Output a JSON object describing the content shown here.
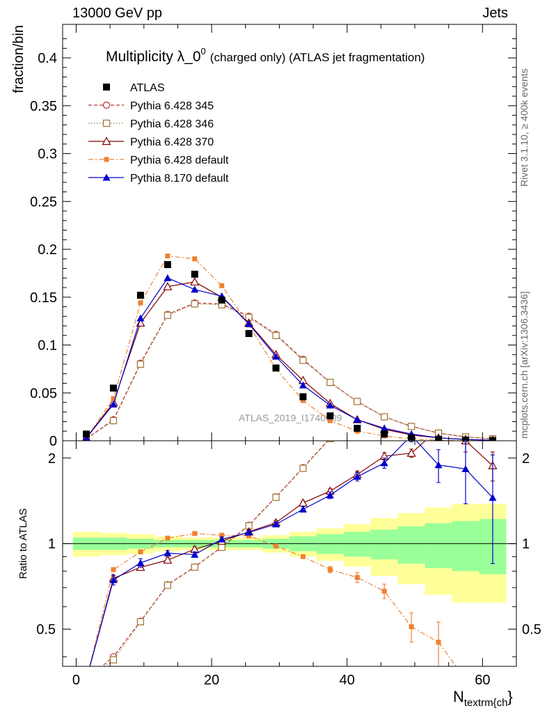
{
  "header": {
    "left": "13000 GeV pp",
    "right": "Jets"
  },
  "side_labels": {
    "rivet": "Rivet 3.1.10, ≥ 400k events",
    "mcplots": "mcplots.cern.ch [arXiv:1306.3436]"
  },
  "chart_data": {
    "type": "line",
    "title": "Multiplicity λ_0",
    "title_superscript": "0",
    "title_suffix": "(charged only) (ATLAS jet fragmentation)",
    "analysis_tag": "ATLAS_2019_I1740909",
    "xlabel": "N",
    "xlabel_sub": "textrm{ch",
    "xlabel_end": "}",
    "ylabel": "fraction/bin",
    "ratio_ylabel": "Ratio to ATLAS",
    "xlim": [
      -2,
      65
    ],
    "ylim": [
      0,
      0.435
    ],
    "ratio_ylim": [
      0.37,
      2.3
    ],
    "x_ticks": [
      0,
      20,
      40,
      60
    ],
    "x_tick_labels": [
      "0",
      "20",
      "40",
      "60"
    ],
    "y_ticks": [
      0,
      0.05,
      0.1,
      0.15,
      0.2,
      0.25,
      0.3,
      0.35,
      0.4
    ],
    "y_tick_labels": [
      "0",
      "0.05",
      "0.1",
      "0.15",
      "0.2",
      "0.25",
      "0.3",
      "0.35",
      "0.4"
    ],
    "ratio_ticks": [
      0.5,
      1,
      2
    ],
    "ratio_tick_labels": [
      "0.5",
      "1",
      "2"
    ],
    "x": [
      1.5,
      5.5,
      9.5,
      13.5,
      17.5,
      21.5,
      25.5,
      29.5,
      33.5,
      37.5,
      41.5,
      45.5,
      49.5,
      53.5,
      57.5,
      61.5
    ],
    "data": {
      "name": "ATLAS",
      "values": [
        0.007,
        0.055,
        0.152,
        0.184,
        0.174,
        0.147,
        0.112,
        0.076,
        0.046,
        0.026,
        0.013,
        0.007,
        0.003,
        0.0015,
        0.0007,
        0.0003
      ],
      "band_inner": [
        0.05,
        0.05,
        0.04,
        0.03,
        0.03,
        0.03,
        0.03,
        0.04,
        0.06,
        0.08,
        0.1,
        0.12,
        0.15,
        0.18,
        0.2,
        0.22
      ],
      "band_outer": [
        0.1,
        0.09,
        0.08,
        0.06,
        0.05,
        0.05,
        0.05,
        0.07,
        0.1,
        0.13,
        0.17,
        0.23,
        0.28,
        0.34,
        0.38,
        0.38
      ]
    },
    "series": [
      {
        "name": "Pythia 6.428 345",
        "color": "#b03030",
        "marker": "open-circle",
        "dash": "dashed",
        "values": [
          0.002,
          0.022,
          0.081,
          0.132,
          0.144,
          0.143,
          0.13,
          0.111,
          0.085,
          0.061,
          0.041,
          0.025,
          0.015,
          0.008,
          0.004,
          0.002
        ],
        "ratio": [
          0.3,
          0.4,
          0.533,
          0.717,
          0.828,
          0.973,
          1.16,
          1.46,
          1.85,
          2.35,
          3.15,
          3.57,
          5.0,
          5.33,
          5.71,
          6.67
        ]
      },
      {
        "name": "Pythia 6.428 346",
        "color": "#a07030",
        "marker": "open-square",
        "dash": "dotted",
        "values": [
          0.002,
          0.021,
          0.08,
          0.131,
          0.143,
          0.142,
          0.129,
          0.11,
          0.084,
          0.061,
          0.041,
          0.025,
          0.015,
          0.008,
          0.004,
          0.002
        ],
        "ratio": [
          0.3,
          0.39,
          0.531,
          0.714,
          0.826,
          0.97,
          1.155,
          1.455,
          1.84,
          2.34,
          3.14,
          3.56,
          5.0,
          5.33,
          5.71,
          6.67
        ]
      },
      {
        "name": "Pythia 6.428 370",
        "color": "#800000",
        "marker": "open-triangle",
        "dash": "solid",
        "values": [
          0.003,
          0.04,
          0.123,
          0.161,
          0.166,
          0.15,
          0.123,
          0.09,
          0.063,
          0.039,
          0.022,
          0.012,
          0.006,
          0.003,
          0.0015,
          0.0006
        ],
        "ratio": [
          0.3,
          0.755,
          0.825,
          0.875,
          0.955,
          1.02,
          1.1,
          1.185,
          1.39,
          1.53,
          1.75,
          2.03,
          2.08,
          2.6,
          2.3,
          1.88
        ],
        "ratio_err": [
          0,
          0.02,
          0.02,
          0.02,
          0.02,
          0.02,
          0.02,
          0.02,
          0.02,
          0.03,
          0.05,
          0.06,
          0.07,
          0.15,
          0.2,
          0.22
        ]
      },
      {
        "name": "Pythia 6.428 default",
        "color": "#f08030",
        "marker": "filled-square",
        "dash": "dashdot",
        "values": [
          0.003,
          0.044,
          0.144,
          0.193,
          0.19,
          0.162,
          0.121,
          0.075,
          0.042,
          0.021,
          0.01,
          0.005,
          0.0017,
          0.0006,
          0.0002,
          0.0001
        ],
        "ratio": [
          0.3,
          0.81,
          0.935,
          1.045,
          1.085,
          1.07,
          1.065,
          0.98,
          0.9,
          0.81,
          0.76,
          0.68,
          0.51,
          0.45,
          0.3,
          0.3
        ],
        "ratio_err": [
          0,
          0.01,
          0.01,
          0.01,
          0.01,
          0.01,
          0.01,
          0.01,
          0.015,
          0.02,
          0.03,
          0.04,
          0.06,
          0.08,
          0,
          0
        ]
      },
      {
        "name": "Pythia 8.170 default",
        "color": "#0000cc",
        "marker": "filled-triangle",
        "dash": "solid",
        "values": [
          0.003,
          0.038,
          0.128,
          0.17,
          0.158,
          0.151,
          0.122,
          0.088,
          0.058,
          0.037,
          0.022,
          0.013,
          0.007,
          0.003,
          0.0013,
          0.0005
        ],
        "ratio": [
          0.3,
          0.745,
          0.855,
          0.925,
          0.915,
          1.035,
          1.095,
          1.17,
          1.32,
          1.48,
          1.72,
          1.92,
          2.4,
          1.89,
          1.83,
          1.45
        ],
        "ratio_err": [
          0,
          0.03,
          0.03,
          0.02,
          0.02,
          0.02,
          0.02,
          0.02,
          0.03,
          0.04,
          0.06,
          0.08,
          0.12,
          0.25,
          0.45,
          0.6
        ]
      }
    ],
    "grid": false,
    "legend_position": "top-left"
  }
}
